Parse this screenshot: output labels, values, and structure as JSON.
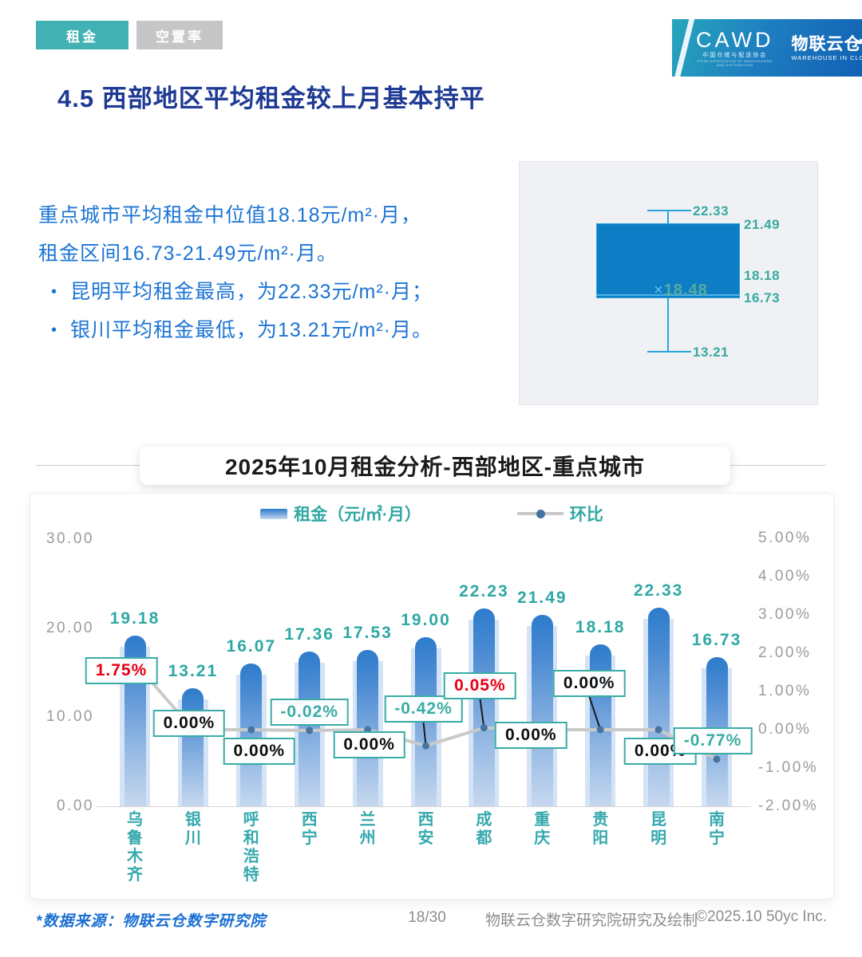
{
  "tabs": [
    {
      "label": "租金",
      "active": true
    },
    {
      "label": "空置率",
      "active": false
    }
  ],
  "logo": {
    "cawd": "CAWD",
    "cawd_sub": "中国仓储与配送协会",
    "cawd_sub2": "CHINA ASSOCIATION OF WAREHOUSING AND DISTRIBUTION",
    "brand": "物联云仓",
    "brand_sub_w": "WAREHOUSE",
    "brand_sub_in": "IN",
    "brand_sub_c": "CLOUD",
    "cloud_icon": "☁",
    "cloud_arrow": "◥"
  },
  "page_title": "4.5 西部地区平均租金较上月基本持平",
  "summary": {
    "bullet_char": "•",
    "line1": "重点城市平均租金中位值18.18元/m²·月，",
    "line2": "租金区间16.73-21.49元/m²·月。",
    "bullet1": "昆明平均租金最高，为22.33元/m²·月；",
    "bullet2": "银川平均租金最低，为13.21元/m²·月。"
  },
  "boxplot": {
    "max": "22.33",
    "q3": "21.49",
    "mean_marker": "×",
    "mean": "18.48",
    "median": "18.18",
    "q1": "16.73",
    "min": "13.21"
  },
  "section_title": "2025年10月租金分析-西部地区-重点城市",
  "legend": {
    "rent": "租金（元/㎡·月）",
    "mom": "环比"
  },
  "chart_data": {
    "type": "bar+line",
    "title": "2025年10月租金分析-西部地区-重点城市",
    "categories": [
      "乌鲁木齐",
      "银川",
      "呼和浩特",
      "西宁",
      "兰州",
      "西安",
      "成都",
      "重庆",
      "贵阳",
      "昆明",
      "南宁"
    ],
    "series": [
      {
        "name": "租金（元/㎡·月）",
        "type": "bar",
        "axis": "left",
        "values": [
          19.18,
          13.21,
          16.07,
          17.36,
          17.53,
          19.0,
          22.23,
          21.49,
          18.18,
          22.33,
          16.73
        ]
      },
      {
        "name": "环比",
        "type": "line",
        "axis": "right",
        "unit": "%",
        "values": [
          1.75,
          0.0,
          0.0,
          -0.02,
          0.0,
          -0.42,
          0.05,
          0.0,
          0.0,
          0.0,
          -0.77
        ],
        "labels": [
          "1.75%",
          "0.00%",
          "0.00%",
          "-0.02%",
          "0.00%",
          "-0.42%",
          "0.05%",
          "0.00%",
          "0.00%",
          "0.00%",
          "-0.77%"
        ],
        "label_colors": [
          "red",
          "black",
          "black",
          "teal",
          "black",
          "teal",
          "red",
          "black",
          "black",
          "black",
          "teal"
        ]
      }
    ],
    "left_axis": {
      "ticks": [
        "30.00",
        "20.00",
        "10.00",
        "0.00"
      ],
      "min": 0,
      "max": 30
    },
    "right_axis": {
      "ticks": [
        "5.00%",
        "4.00%",
        "3.00%",
        "2.00%",
        "1.00%",
        "0.00%",
        "-1.00%",
        "-2.00%"
      ],
      "min": -2,
      "max": 5
    },
    "grid": false,
    "legend_position": "top"
  },
  "footer": {
    "source": "*数据来源：物联云仓数字研究院",
    "page": "18/30",
    "credit": "物联云仓数字研究院研究及绘制",
    "copyright": "©2025.10 50yc Inc."
  },
  "colors": {
    "teal": "#36aaa6",
    "red": "#e60012",
    "navy": "#1e3a94",
    "blue_text": "#1c74d4",
    "bar_top": "#2d7ccb",
    "box_fill": "#0d7ec6",
    "line_gray": "#c9c9c9",
    "dot_blue": "#44749f",
    "axis_gray": "#9b9b9b"
  }
}
